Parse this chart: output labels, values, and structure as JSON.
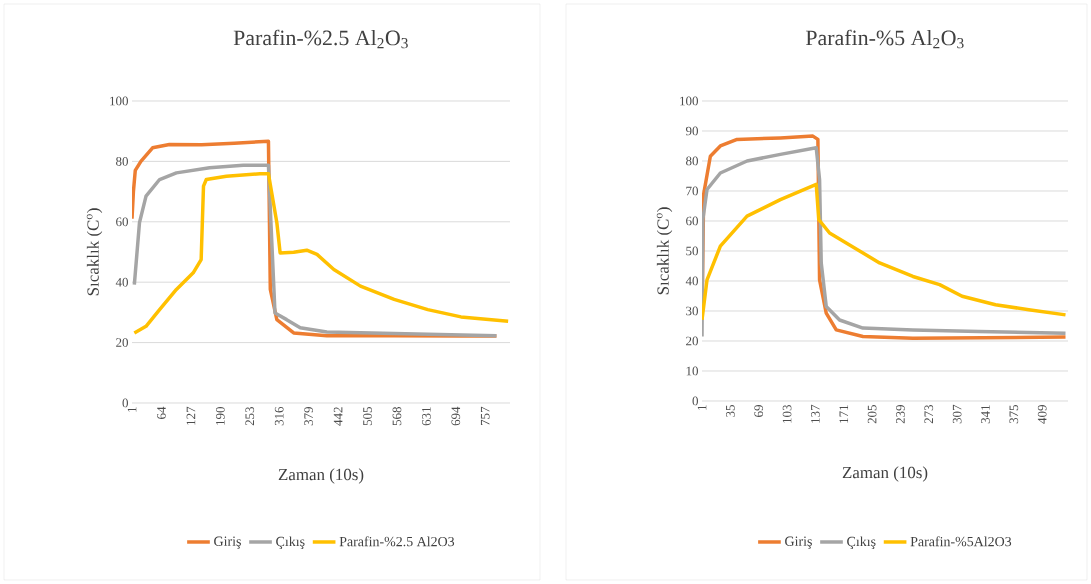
{
  "chart_data": [
    {
      "type": "line",
      "title": "Parafin-%2.5 Al$_{2}$O$_{3}$",
      "xlabel": "Zaman (10s)",
      "ylabel": "Sıcaklık (C$^{o}$)",
      "xlim": [
        1,
        810
      ],
      "xticks": [
        1,
        64,
        127,
        190,
        253,
        316,
        379,
        442,
        505,
        568,
        631,
        694,
        757
      ],
      "ylim": [
        0,
        100
      ],
      "yticks": [
        0,
        20,
        40,
        60,
        80,
        100
      ],
      "grid": "y",
      "legend": "bottom",
      "series": [
        {
          "name": "Giriş",
          "color": "#ed7d31",
          "x": [
            1,
            4,
            8,
            20,
            45,
            81,
            150,
            220,
            293,
            297,
            311,
            347,
            418,
            562,
            705,
            781
          ],
          "values": [
            61,
            70,
            77,
            80,
            84.5,
            85.6,
            85.5,
            86,
            86.7,
            37.6,
            27.6,
            23.2,
            22.3,
            22.3,
            22.2,
            22.2
          ]
        },
        {
          "name": "Çıkış",
          "color": "#a5a5a5",
          "x": [
            6,
            17,
            31,
            60,
            96,
            167,
            239,
            293,
            298,
            307,
            332,
            361,
            418,
            562,
            781
          ],
          "values": [
            39.2,
            59.7,
            68.5,
            74,
            76.2,
            77.9,
            78.7,
            78.7,
            60.8,
            29.8,
            27.6,
            24.9,
            23.5,
            23,
            22.3
          ]
        },
        {
          "name": "Parafin-%2.5 Al2O3",
          "color": "#ffc000",
          "x": [
            6,
            31,
            60,
            96,
            132,
            149,
            154,
            160,
            203,
            275,
            293,
            311,
            318,
            347,
            375,
            397,
            433,
            490,
            562,
            634,
            705,
            806
          ],
          "values": [
            23.2,
            25.4,
            30.9,
            37.6,
            43.1,
            47.5,
            71.8,
            74,
            75.1,
            75.9,
            75.9,
            59.7,
            49.7,
            49.9,
            50.6,
            49.2,
            44.2,
            38.7,
            34.3,
            30.9,
            28.5,
            27.1
          ]
        }
      ]
    },
    {
      "type": "line",
      "title": "Parafin-%5 Al$_{2}$O$_{3}$",
      "xlabel": "Zaman (10s)",
      "ylabel": "Sıcaklık (C$^{o}$)",
      "xlim": [
        1,
        440
      ],
      "xticks": [
        1,
        35,
        69,
        103,
        137,
        171,
        205,
        239,
        273,
        307,
        341,
        375,
        409
      ],
      "ylim": [
        0,
        100
      ],
      "yticks": [
        0,
        10,
        20,
        30,
        40,
        50,
        60,
        70,
        80,
        90,
        100
      ],
      "grid": "y",
      "legend": "bottom",
      "series": [
        {
          "name": "Giriş",
          "color": "#ed7d31",
          "x": [
            1,
            3,
            11,
            23,
            43,
            95,
            134,
            140,
            142,
            150,
            162,
            194,
            254,
            437
          ],
          "values": [
            29,
            69,
            81.6,
            85,
            87.2,
            87.7,
            88.3,
            87.2,
            40.4,
            29.3,
            23.7,
            21.5,
            20.9,
            21.3
          ]
        },
        {
          "name": "Çıkış",
          "color": "#a5a5a5",
          "x": [
            1,
            2,
            7,
            23,
            55,
            95,
            138,
            142,
            144,
            150,
            166,
            194,
            254,
            333,
            437
          ],
          "values": [
            21.5,
            60.5,
            70.5,
            76,
            80,
            82.2,
            84.4,
            73.8,
            46,
            31.5,
            27,
            24.3,
            23.7,
            23.2,
            22.6
          ]
        },
        {
          "name": "Parafin-%5Al2O3",
          "color": "#ffc000",
          "x": [
            1,
            7,
            23,
            55,
            95,
            138,
            141,
            154,
            174,
            214,
            254,
            286,
            313,
            353,
            393,
            437
          ],
          "values": [
            27.1,
            40.4,
            51.6,
            61.6,
            67.1,
            72.2,
            60.5,
            56,
            52.7,
            46,
            41.5,
            38.8,
            34.9,
            32.1,
            30.4,
            28.7
          ]
        }
      ]
    }
  ]
}
